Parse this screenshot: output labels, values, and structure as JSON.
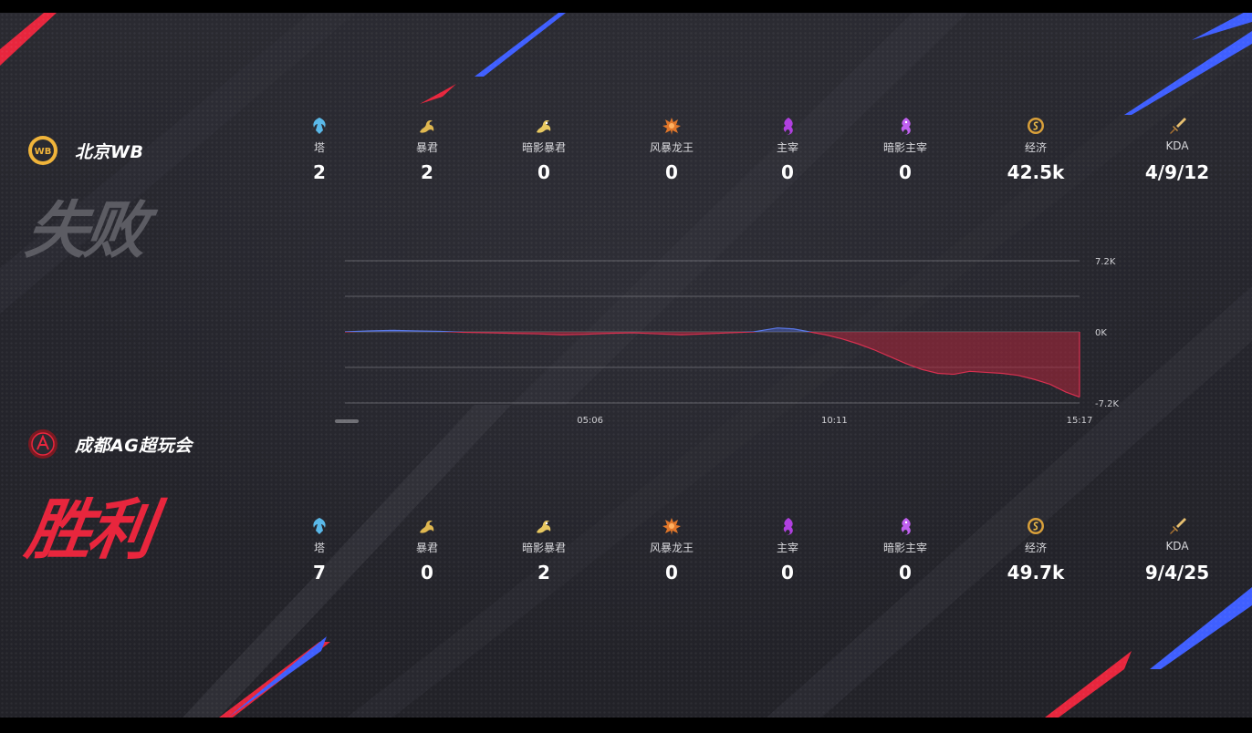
{
  "colors": {
    "accent_red": "#e8263d",
    "accent_blue": "#3f5fff",
    "lose_text": "#5c5c63",
    "blue_line": "#4f6bd8",
    "red_fill": "#b0263c"
  },
  "teams": [
    {
      "name": "北京WB",
      "result": "失败",
      "logo_icon": "wb-team-logo-icon",
      "stats": [
        {
          "icon": "tower-icon",
          "label": "塔",
          "value": "2"
        },
        {
          "icon": "tyrant-icon",
          "label": "暴君",
          "value": "2"
        },
        {
          "icon": "shadow-tyrant-icon",
          "label": "暗影暴君",
          "value": "0"
        },
        {
          "icon": "storm-dragon-icon",
          "label": "风暴龙王",
          "value": "0"
        },
        {
          "icon": "overlord-icon",
          "label": "主宰",
          "value": "0"
        },
        {
          "icon": "shadow-overlord-icon",
          "label": "暗影主宰",
          "value": "0"
        },
        {
          "icon": "gold-icon",
          "label": "经济",
          "value": "42.5k"
        },
        {
          "icon": "sword-icon",
          "label": "KDA",
          "value": "4/9/12"
        }
      ]
    },
    {
      "name": "成都AG超玩会",
      "result": "胜利",
      "logo_icon": "ag-team-logo-icon",
      "stats": [
        {
          "icon": "tower-icon",
          "label": "塔",
          "value": "7"
        },
        {
          "icon": "tyrant-icon",
          "label": "暴君",
          "value": "0"
        },
        {
          "icon": "shadow-tyrant-icon",
          "label": "暗影暴君",
          "value": "2"
        },
        {
          "icon": "storm-dragon-icon",
          "label": "风暴龙王",
          "value": "0"
        },
        {
          "icon": "overlord-icon",
          "label": "主宰",
          "value": "0"
        },
        {
          "icon": "shadow-overlord-icon",
          "label": "暗影主宰",
          "value": "0"
        },
        {
          "icon": "gold-icon",
          "label": "经济",
          "value": "49.7k"
        },
        {
          "icon": "sword-icon",
          "label": "KDA",
          "value": "9/4/25"
        }
      ]
    }
  ],
  "chart_data": {
    "type": "area",
    "title": "",
    "xlabel": "",
    "ylabel": "",
    "x_ticks": [
      "05:06",
      "10:11",
      "15:17"
    ],
    "y_ticks": [
      "7.2K",
      "0K",
      "-7.2K"
    ],
    "ylim": [
      -7200,
      7200
    ],
    "xlim_seconds": [
      0,
      917
    ],
    "grid": true,
    "series": [
      {
        "x": [
          0,
          30,
          60,
          90,
          120,
          150,
          180,
          210,
          240,
          270,
          300,
          330,
          360,
          390,
          420,
          450,
          480,
          510,
          540,
          560,
          580,
          600,
          620,
          640,
          660,
          680,
          700,
          720,
          740,
          760,
          780,
          800,
          820,
          840,
          860,
          880,
          900,
          917
        ],
        "values": [
          0,
          100,
          150,
          100,
          50,
          -50,
          -100,
          -150,
          -200,
          -300,
          -250,
          -150,
          -100,
          -200,
          -300,
          -200,
          -100,
          0,
          400,
          300,
          0,
          -300,
          -700,
          -1200,
          -1800,
          -2500,
          -3200,
          -3800,
          -4200,
          -4300,
          -4000,
          -4100,
          -4200,
          -4400,
          -4800,
          -5300,
          -6100,
          -6600
        ]
      }
    ]
  }
}
